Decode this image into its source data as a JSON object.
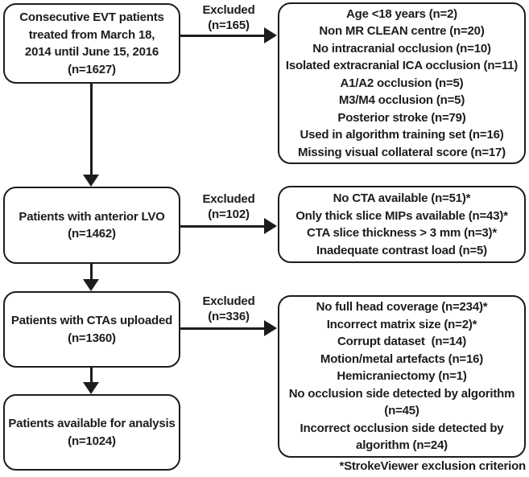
{
  "flow": {
    "left_boxes": [
      {
        "id": "consecutive-evt-patients",
        "lines": [
          "Consecutive EVT patients",
          "treated from March 18,",
          "2014 until June 15, 2016",
          "(n=1627)"
        ]
      },
      {
        "id": "patients-anterior-lvo",
        "lines": [
          "Patients with anterior LVO",
          "(n=1462)"
        ]
      },
      {
        "id": "patients-ctas-uploaded",
        "lines": [
          "Patients with CTAs uploaded",
          "(n=1360)"
        ]
      },
      {
        "id": "patients-available-analysis",
        "lines": [
          "Patients available for analysis",
          "(n=1024)"
        ]
      }
    ],
    "exclusion_boxes": [
      {
        "id": "exclusions-step-1",
        "items": [
          "Age <18 years (n=2)",
          "Non MR CLEAN centre (n=20)",
          "No intracranial occlusion (n=10)",
          "Isolated extracranial ICA occlusion (n=11)",
          "A1/A2 occlusion (n=5)",
          "M3/M4 occlusion (n=5)",
          "Posterior stroke (n=79)",
          "Used in algorithm training set (n=16)",
          "Missing visual collateral score (n=17)"
        ]
      },
      {
        "id": "exclusions-step-2",
        "items": [
          "No CTA available (n=51)*",
          "Only thick slice MIPs available (n=43)*",
          "CTA slice thickness > 3 mm (n=3)*",
          "Inadequate contrast load (n=5)"
        ]
      },
      {
        "id": "exclusions-step-3",
        "items": [
          "No full head coverage (n=234)*",
          "Incorrect matrix size (n=2)*",
          "Corrupt dataset  (n=14)",
          "Motion/metal artefacts (n=16)",
          "Hemicraniectomy (n=1)",
          "No occlusion side detected by algorithm (n=45)",
          "Incorrect occlusion side detected by algorithm (n=24)"
        ]
      }
    ],
    "excluded_labels": [
      {
        "line1": "Excluded",
        "line2": "(n=165)"
      },
      {
        "line1": "Excluded",
        "line2": "(n=102)"
      },
      {
        "line1": "Excluded",
        "line2": "(n=336)"
      }
    ],
    "footnote": "*StrokeViewer exclusion criterion",
    "colors": {
      "ink": "#1c1c1c",
      "background": "#ffffff"
    }
  }
}
